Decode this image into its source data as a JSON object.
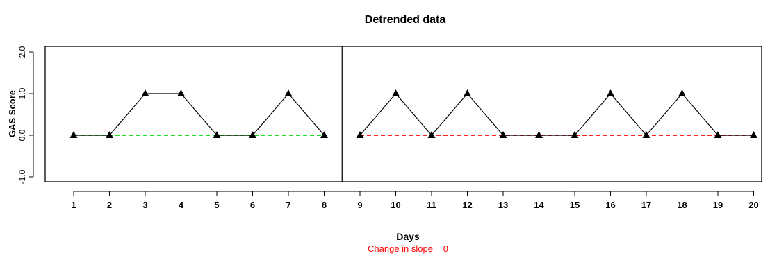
{
  "chart_data": {
    "type": "line",
    "title": "Detrended data",
    "xlabel": "Days",
    "ylabel": "GAS Score",
    "subtitle": "Change in slope = 0",
    "subtitle_color": "#ff0000",
    "x": [
      1,
      2,
      3,
      4,
      5,
      6,
      7,
      8,
      9,
      10,
      11,
      12,
      13,
      14,
      15,
      16,
      17,
      18,
      19,
      20
    ],
    "xlim": [
      0.5,
      20.5
    ],
    "ylim": [
      -1.3,
      2.0
    ],
    "yticks": [
      -1.0,
      0.0,
      1.0,
      2.0
    ],
    "ytick_labels": [
      "-1.0",
      "0.0",
      "1.0",
      "2.0"
    ],
    "phase_divider_x": 8.5,
    "series": [
      {
        "phase": 1,
        "x": [
          1,
          2,
          3,
          4,
          5,
          6,
          7,
          8
        ],
        "values": [
          0,
          0,
          1,
          1,
          0,
          0,
          1,
          0
        ],
        "color": "#000000",
        "marker": "triangle"
      },
      {
        "phase": 2,
        "x": [
          9,
          10,
          11,
          12,
          13,
          14,
          15,
          16,
          17,
          18,
          19,
          20
        ],
        "values": [
          0,
          1,
          0,
          1,
          0,
          0,
          0,
          1,
          0,
          1,
          0,
          0
        ],
        "color": "#000000",
        "marker": "triangle"
      }
    ],
    "trend_lines": [
      {
        "x": [
          1,
          8
        ],
        "values": [
          0,
          0
        ],
        "color": "#00dd00",
        "style": "dashed"
      },
      {
        "x": [
          9,
          20
        ],
        "values": [
          0,
          0
        ],
        "color": "#ff0000",
        "style": "dashed"
      }
    ],
    "grid": false,
    "legend": "none"
  }
}
